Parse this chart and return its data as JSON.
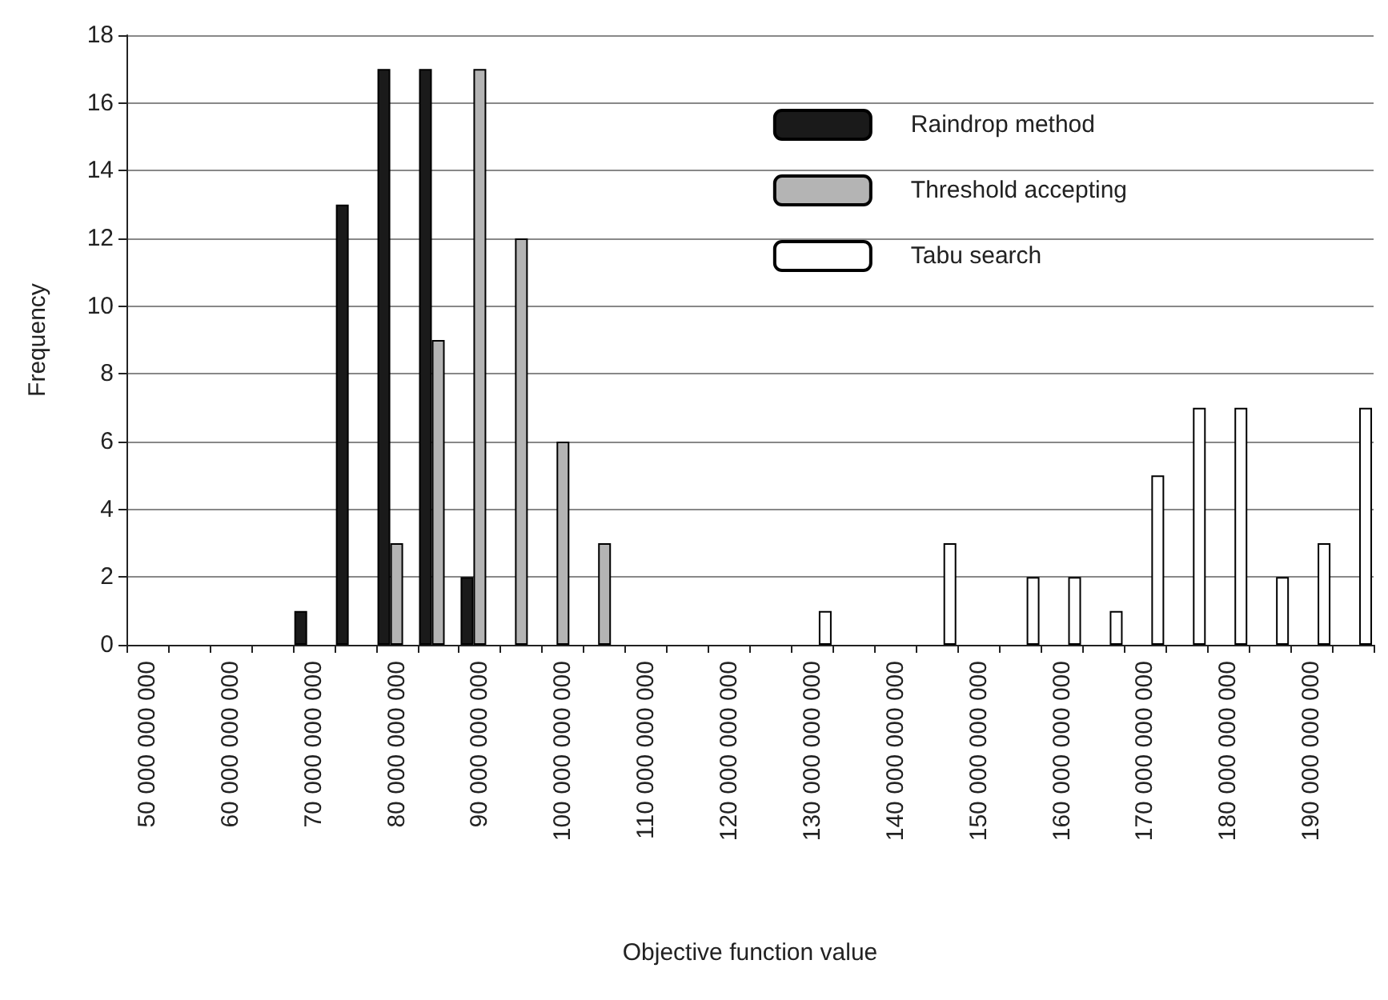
{
  "chart_data": {
    "type": "bar",
    "xlabel": "Objective function value",
    "ylabel": "Frequency",
    "categories": [
      "50 000 000 000",
      null,
      "60 000 000 000",
      null,
      "70 000 000 000",
      null,
      "80 000 000 000",
      null,
      "90 000 000 000",
      null,
      "100 000 000 000",
      null,
      "110 000 000 000",
      null,
      "120 000 000 000",
      null,
      "130 000 000 000",
      null,
      "140 000 000 000",
      null,
      "150 000 000 000",
      null,
      "160 000 000 000",
      null,
      "170 000 000 000",
      null,
      "180 000 000 000",
      null,
      "190 000 000 000",
      null
    ],
    "series": [
      {
        "name": "Raindrop method",
        "color": "#1a1a1a",
        "values": [
          null,
          null,
          null,
          null,
          1,
          13,
          17,
          17,
          2,
          null,
          null,
          null,
          null,
          null,
          null,
          null,
          null,
          null,
          null,
          null,
          null,
          null,
          null,
          null,
          null,
          null,
          null,
          null,
          null,
          null
        ]
      },
      {
        "name": "Threshold accepting",
        "color": "#b4b4b4",
        "values": [
          null,
          null,
          null,
          null,
          null,
          null,
          3,
          9,
          17,
          12,
          6,
          3,
          null,
          null,
          null,
          null,
          null,
          null,
          null,
          null,
          null,
          null,
          null,
          null,
          null,
          null,
          null,
          null,
          null,
          null
        ]
      },
      {
        "name": "Tabu search",
        "color": "#ffffff",
        "values": [
          null,
          null,
          null,
          null,
          null,
          null,
          null,
          null,
          null,
          null,
          null,
          null,
          null,
          null,
          null,
          null,
          1,
          null,
          null,
          3,
          null,
          2,
          2,
          1,
          5,
          7,
          7,
          2,
          3,
          7
        ]
      }
    ],
    "ylim": [
      0,
      18
    ],
    "yticks": [
      0,
      2,
      4,
      6,
      8,
      10,
      12,
      14,
      16,
      18
    ],
    "grid": "y",
    "legend": "top right"
  }
}
